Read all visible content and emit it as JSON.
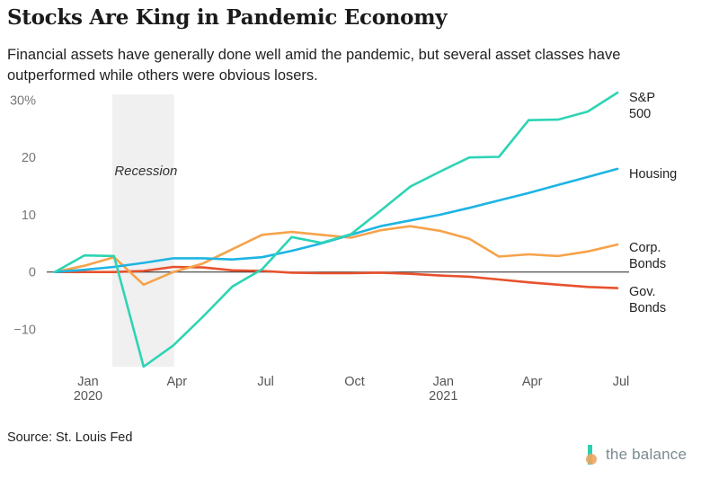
{
  "title": "Stocks Are King in Pandemic Economy",
  "subtitle": "Financial assets have generally done well amid the pandemic, but several asset classes have outperformed while others were obvious losers.",
  "source": "Source: St. Louis Fed",
  "brand": {
    "name": "the balance",
    "icon": "the-balance-logo-icon",
    "colors": {
      "bar": "#2ecfb0",
      "dot": "#f0a560",
      "text": "#7a8a8f"
    }
  },
  "chart_data": {
    "type": "line",
    "x": [
      "2019-12",
      "2020-01",
      "2020-02",
      "2020-03",
      "2020-04",
      "2020-05",
      "2020-06",
      "2020-07",
      "2020-08",
      "2020-09",
      "2020-10",
      "2020-11",
      "2020-12",
      "2021-01",
      "2021-02",
      "2021-03",
      "2021-04",
      "2021-05",
      "2021-06",
      "2021-07"
    ],
    "x_ticks": [
      {
        "x": "2020-01",
        "label": "Jan",
        "sublabel": "2020"
      },
      {
        "x": "2020-04",
        "label": "Apr",
        "sublabel": ""
      },
      {
        "x": "2020-07",
        "label": "Jul",
        "sublabel": ""
      },
      {
        "x": "2020-10",
        "label": "Oct",
        "sublabel": ""
      },
      {
        "x": "2021-01",
        "label": "Jan",
        "sublabel": "2021"
      },
      {
        "x": "2021-04",
        "label": "Apr",
        "sublabel": ""
      },
      {
        "x": "2021-07",
        "label": "Jul",
        "sublabel": ""
      }
    ],
    "y_ticks": [
      {
        "value": 30,
        "label": "30%"
      },
      {
        "value": 20,
        "label": "20"
      },
      {
        "value": 10,
        "label": "10"
      },
      {
        "value": 0,
        "label": "0"
      },
      {
        "value": -10,
        "label": "−10"
      }
    ],
    "ylim": [
      -16.5,
      31
    ],
    "recession": {
      "start": "2020-02",
      "end": "2020-04",
      "label": "Recession",
      "color": "#f0f0f0"
    },
    "series": [
      {
        "name": "S&P 500",
        "label_lines": [
          "S&P",
          "500"
        ],
        "color": "#2dd4b4",
        "values": [
          0,
          2.9,
          2.8,
          -16.5,
          -12.8,
          -7.8,
          -2.5,
          0.5,
          6.1,
          5.1,
          6.6,
          10.7,
          14.9,
          17.5,
          20.0,
          20.1,
          26.5,
          26.6,
          28.0,
          31.3
        ]
      },
      {
        "name": "Housing",
        "label_lines": [
          "Housing"
        ],
        "color": "#1db4e4",
        "values": [
          0,
          0.4,
          0.9,
          1.6,
          2.4,
          2.4,
          2.2,
          2.6,
          3.7,
          5.0,
          6.5,
          8.0,
          9.0,
          10.0,
          11.2,
          12.5,
          13.8,
          15.2,
          16.6,
          18.0
        ]
      },
      {
        "name": "Corp. Bonds",
        "label_lines": [
          "Corp.",
          "Bonds"
        ],
        "color": "#f6a34b",
        "values": [
          0,
          1.1,
          2.6,
          -2.2,
          0,
          1.5,
          4.0,
          6.5,
          7.0,
          6.5,
          6.0,
          7.3,
          8.0,
          7.2,
          5.8,
          2.7,
          3.1,
          2.8,
          3.6,
          4.8
        ]
      },
      {
        "name": "Gov. Bonds",
        "label_lines": [
          "Gov.",
          "Bonds"
        ],
        "color": "#e8512d",
        "values": [
          0,
          0,
          0,
          0.2,
          0.9,
          0.8,
          0.3,
          0.2,
          -0.1,
          -0.2,
          -0.2,
          -0.1,
          -0.3,
          -0.6,
          -0.8,
          -1.3,
          -1.8,
          -2.2,
          -2.6,
          -2.8
        ]
      }
    ]
  }
}
